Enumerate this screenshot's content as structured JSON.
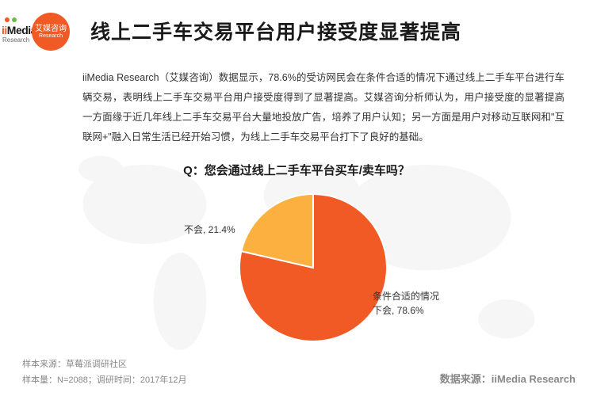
{
  "logo": {
    "brand": "Media",
    "sub": "Research",
    "circle_top": "艾媒咨询",
    "circle_bottom": "Research",
    "dot_colors": [
      "#f15a24",
      "#6abd45"
    ]
  },
  "title": "线上二手车交易平台用户接受度显著提高",
  "body": "iiMedia Research（艾媒咨询）数据显示，78.6%的受访网民会在条件合适的情况下通过线上二手车平台进行车辆交易，表明线上二手车交易平台用户接受度得到了显著提高。艾媒咨询分析师认为，用户接受度的显著提高一方面缘于近几年线上二手车交易平台大量地投放广告，培养了用户认知；另一方面是用户对移动互联网和\"互联网+\"融入日常生活已经开始习惯，为线上二手车交易平台打下了良好的基础。",
  "question": "Q：您会通过线上二手车平台买车/卖车吗？",
  "chart": {
    "type": "pie",
    "slices": [
      {
        "label": "条件合适的情况下会",
        "short": "条件合适的情况\n下会, 78.6%",
        "value": 78.6,
        "color": "#f15a24"
      },
      {
        "label": "不会",
        "short": "不会, 21.4%",
        "value": 21.4,
        "color": "#fcb040"
      }
    ],
    "stroke": "#ffffff",
    "stroke_width": 2,
    "radius": 93,
    "start_angle_deg": -90
  },
  "footer": {
    "source": "样本来源：草莓派调研社区",
    "sample": "样本量：N=2088；调研时间：2017年12月",
    "right": "数据来源：iiMedia Research"
  },
  "colors": {
    "bg_map": "#cccccc",
    "text": "#333333",
    "muted": "#888888"
  }
}
